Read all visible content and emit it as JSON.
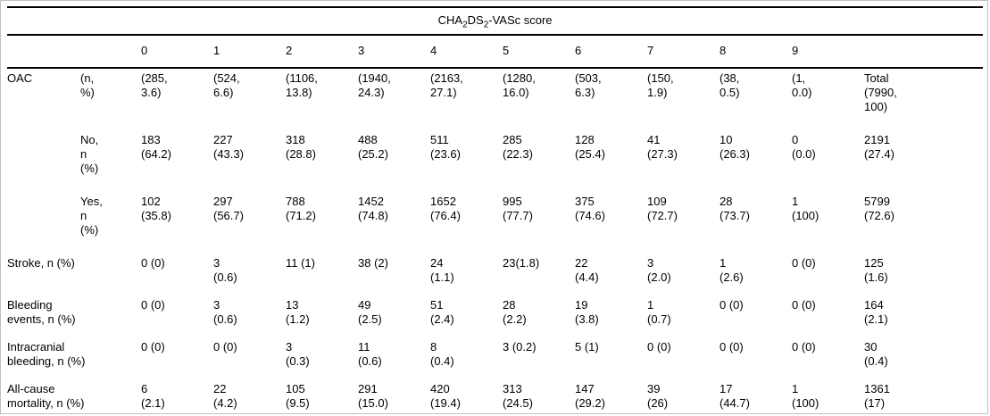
{
  "title": {
    "p1": "CHA",
    "s1": "2",
    "p2": "DS",
    "s2": "2",
    "p3": "-VASc score"
  },
  "table": {
    "score_headers": [
      "0",
      "1",
      "2",
      "3",
      "4",
      "5",
      "6",
      "7",
      "8",
      "9"
    ],
    "rows": [
      {
        "group": "OAC",
        "sublabel": "(n,\n%)",
        "values": [
          "(285,\n3.6)",
          "(524,\n6.6)",
          "(1106,\n13.8)",
          "(1940,\n24.3)",
          "(2163,\n27.1)",
          "(1280,\n16.0)",
          "(503,\n6.3)",
          "(150,\n1.9)",
          "(38,\n0.5)",
          "(1,\n0.0)",
          "Total\n(7990,\n100)"
        ]
      },
      {
        "group": "",
        "sublabel": "No,\nn\n(%)",
        "values": [
          "183\n(64.2)",
          "227\n(43.3)",
          "318\n(28.8)",
          "488\n(25.2)",
          "511\n(23.6)",
          "285\n(22.3)",
          "128\n(25.4)",
          "41\n(27.3)",
          "10\n(26.3)",
          "0\n(0.0)",
          "2191\n(27.4)"
        ]
      },
      {
        "group": "",
        "sublabel": "Yes,\nn\n(%)",
        "values": [
          "102\n(35.8)",
          "297\n(56.7)",
          "788\n(71.2)",
          "1452\n(74.8)",
          "1652\n(76.4)",
          "995\n(77.7)",
          "375\n(74.6)",
          "109\n(72.7)",
          "28\n(73.7)",
          "1\n(100)",
          "5799\n(72.6)"
        ]
      },
      {
        "label": "Stroke, n (%)",
        "values": [
          "0 (0)",
          "3\n(0.6)",
          "11 (1)",
          "38 (2)",
          "24\n(1.1)",
          "23(1.8)",
          "22\n(4.4)",
          "3\n(2.0)",
          "1\n(2.6)",
          "0 (0)",
          "125\n(1.6)"
        ]
      },
      {
        "label": "Bleeding\nevents, n (%)",
        "values": [
          "0 (0)",
          "3\n(0.6)",
          "13\n(1.2)",
          "49\n(2.5)",
          "51\n(2.4)",
          "28\n(2.2)",
          "19\n(3.8)",
          "1\n(0.7)",
          "0 (0)",
          "0 (0)",
          "164\n(2.1)"
        ]
      },
      {
        "label": "Intracranial\nbleeding, n (%)",
        "values": [
          "0 (0)",
          "0 (0)",
          "3\n(0.3)",
          "11\n(0.6)",
          "8\n(0.4)",
          "3 (0.2)",
          "5 (1)",
          "0 (0)",
          "0 (0)",
          "0 (0)",
          "30\n(0.4)"
        ]
      },
      {
        "label": "All-cause\nmortality, n (%)",
        "values": [
          "6\n(2.1)",
          "22\n(4.2)",
          "105\n(9.5)",
          "291\n(15.0)",
          "420\n(19.4)",
          "313\n(24.5)",
          "147\n(29.2)",
          "39\n(26)",
          "17\n(44.7)",
          "1\n(100)",
          "1361\n(17)"
        ]
      }
    ]
  },
  "colors": {
    "text": "#000000",
    "rule": "#000000",
    "frame": "#c0c0c0",
    "background": "#ffffff"
  }
}
